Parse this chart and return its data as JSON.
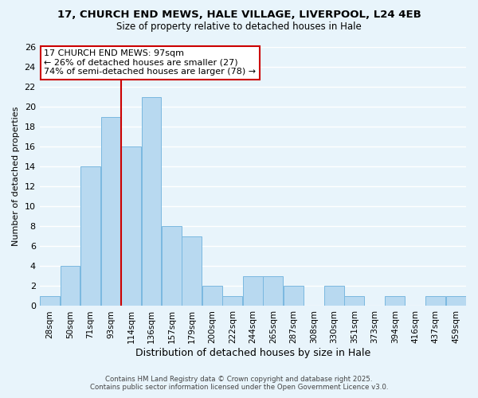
{
  "title1": "17, CHURCH END MEWS, HALE VILLAGE, LIVERPOOL, L24 4EB",
  "title2": "Size of property relative to detached houses in Hale",
  "xlabel": "Distribution of detached houses by size in Hale",
  "ylabel": "Number of detached properties",
  "bar_labels": [
    "28sqm",
    "50sqm",
    "71sqm",
    "93sqm",
    "114sqm",
    "136sqm",
    "157sqm",
    "179sqm",
    "200sqm",
    "222sqm",
    "244sqm",
    "265sqm",
    "287sqm",
    "308sqm",
    "330sqm",
    "351sqm",
    "373sqm",
    "394sqm",
    "416sqm",
    "437sqm",
    "459sqm"
  ],
  "bar_values": [
    1,
    4,
    14,
    19,
    16,
    21,
    8,
    7,
    2,
    1,
    3,
    3,
    2,
    0,
    2,
    1,
    0,
    1,
    0,
    1,
    1
  ],
  "bar_color": "#b8d9f0",
  "bar_edgecolor": "#7ab8e0",
  "bg_color": "#e8f4fb",
  "grid_color": "#ffffff",
  "vline_x": 3.5,
  "vline_color": "#cc0000",
  "annotation_title": "17 CHURCH END MEWS: 97sqm",
  "annotation_line1": "← 26% of detached houses are smaller (27)",
  "annotation_line2": "74% of semi-detached houses are larger (78) →",
  "ylim": [
    0,
    26
  ],
  "yticks": [
    0,
    2,
    4,
    6,
    8,
    10,
    12,
    14,
    16,
    18,
    20,
    22,
    24,
    26
  ],
  "footer1": "Contains HM Land Registry data © Crown copyright and database right 2025.",
  "footer2": "Contains public sector information licensed under the Open Government Licence v3.0."
}
